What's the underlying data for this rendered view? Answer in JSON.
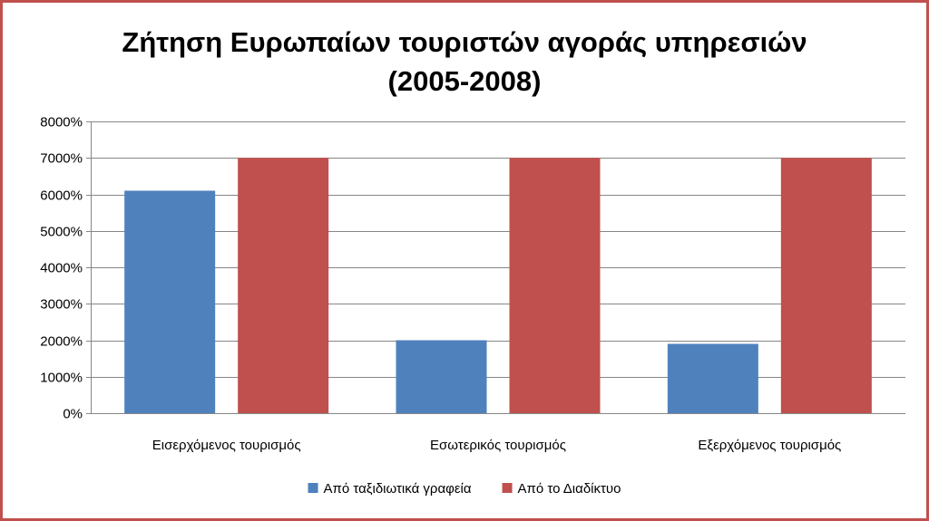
{
  "chart_data": {
    "type": "bar",
    "title_lines": [
      "Ζήτηση Ευρωπαίων τουριστών αγοράς υπηρεσιών",
      "(2005-2008)"
    ],
    "categories": [
      "Εισερχόμενος τουρισμός",
      "Εσωτερικός τουρισμός",
      "Εξερχόμενος τουρισμός"
    ],
    "series": [
      {
        "name": "Από ταξιδιωτικά γραφεία",
        "values": [
          6100,
          2000,
          1900
        ],
        "color": "#4f81bd"
      },
      {
        "name": "Από το Διαδίκτυο",
        "values": [
          7000,
          7000,
          7000
        ],
        "color": "#c0504d"
      }
    ],
    "ylim": [
      0,
      8000
    ],
    "y_ticks": [
      0,
      1000,
      2000,
      3000,
      4000,
      5000,
      6000,
      7000,
      8000
    ],
    "y_tick_labels": [
      "0%",
      "1000%",
      "2000%",
      "3000%",
      "4000%",
      "5000%",
      "6000%",
      "7000%",
      "8000%"
    ],
    "grid": true,
    "legend_position": "bottom"
  },
  "colors": {
    "frame_border": "#c0504d",
    "gridline": "#868686"
  }
}
